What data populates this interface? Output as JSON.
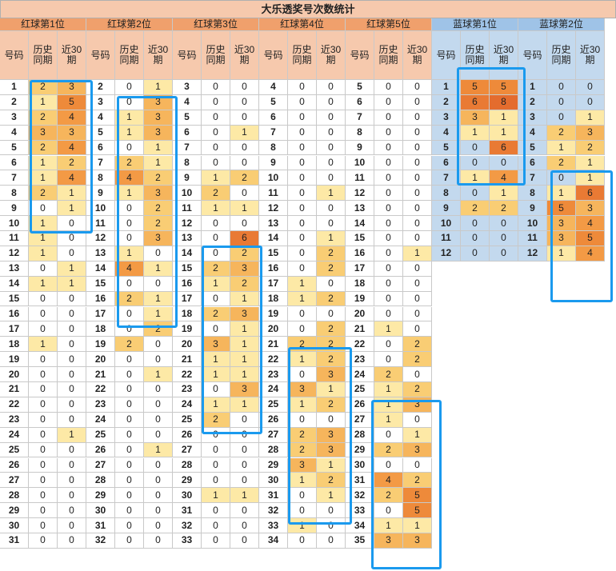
{
  "title": "大乐透奖号次数统计",
  "headers": {
    "num": "号码",
    "hist": "历史\n同期",
    "recent": "近30\n期"
  },
  "colors": {
    "c0": "#ffffff",
    "c1": "#fde9a6",
    "c2": "#f9cd74",
    "c3": "#f6b55c",
    "c4": "#f39a45",
    "c5": "#ee8a3a",
    "c6": "#e97a34",
    "c8": "#e46c2e"
  },
  "red_groups": [
    {
      "label": "红球第1位",
      "rows": [
        [
          "1",
          2,
          3
        ],
        [
          "2",
          1,
          5
        ],
        [
          "3",
          2,
          4
        ],
        [
          "4",
          3,
          3
        ],
        [
          "5",
          2,
          4
        ],
        [
          "6",
          1,
          2
        ],
        [
          "7",
          1,
          4
        ],
        [
          "8",
          2,
          1
        ],
        [
          "9",
          0,
          1
        ],
        [
          "10",
          1,
          0
        ],
        [
          "11",
          1,
          0
        ],
        [
          "12",
          1,
          0
        ],
        [
          "13",
          0,
          1
        ],
        [
          "14",
          1,
          1
        ],
        [
          "15",
          0,
          0
        ],
        [
          "16",
          0,
          0
        ],
        [
          "17",
          0,
          0
        ],
        [
          "18",
          1,
          0
        ],
        [
          "19",
          0,
          0
        ],
        [
          "20",
          0,
          0
        ],
        [
          "21",
          0,
          0
        ],
        [
          "22",
          0,
          0
        ],
        [
          "23",
          0,
          0
        ],
        [
          "24",
          0,
          1
        ],
        [
          "25",
          0,
          0
        ],
        [
          "26",
          0,
          0
        ],
        [
          "27",
          0,
          0
        ],
        [
          "28",
          0,
          0
        ],
        [
          "29",
          0,
          0
        ],
        [
          "30",
          0,
          0
        ],
        [
          "31",
          0,
          0
        ]
      ]
    },
    {
      "label": "红球第2位",
      "rows": [
        [
          "2",
          0,
          1
        ],
        [
          "3",
          0,
          3
        ],
        [
          "4",
          1,
          3
        ],
        [
          "5",
          1,
          3
        ],
        [
          "6",
          0,
          1
        ],
        [
          "7",
          2,
          1
        ],
        [
          "8",
          4,
          2
        ],
        [
          "9",
          1,
          3
        ],
        [
          "10",
          0,
          2
        ],
        [
          "11",
          0,
          2
        ],
        [
          "12",
          0,
          3
        ],
        [
          "13",
          1,
          0
        ],
        [
          "14",
          4,
          1
        ],
        [
          "15",
          0,
          0
        ],
        [
          "16",
          2,
          1
        ],
        [
          "17",
          0,
          1
        ],
        [
          "18",
          0,
          2
        ],
        [
          "19",
          2,
          0
        ],
        [
          "20",
          0,
          0
        ],
        [
          "21",
          0,
          1
        ],
        [
          "22",
          0,
          0
        ],
        [
          "23",
          0,
          0
        ],
        [
          "24",
          0,
          0
        ],
        [
          "25",
          0,
          0
        ],
        [
          "26",
          0,
          1
        ],
        [
          "27",
          0,
          0
        ],
        [
          "28",
          0,
          0
        ],
        [
          "29",
          0,
          0
        ],
        [
          "30",
          0,
          0
        ],
        [
          "31",
          0,
          0
        ],
        [
          "32",
          0,
          0
        ]
      ]
    },
    {
      "label": "红球第3位",
      "rows": [
        [
          "3",
          0,
          0
        ],
        [
          "4",
          0,
          0
        ],
        [
          "5",
          0,
          0
        ],
        [
          "6",
          0,
          1
        ],
        [
          "7",
          0,
          0
        ],
        [
          "8",
          0,
          0
        ],
        [
          "9",
          1,
          2
        ],
        [
          "10",
          2,
          0
        ],
        [
          "11",
          1,
          1
        ],
        [
          "12",
          0,
          0
        ],
        [
          "13",
          0,
          6
        ],
        [
          "14",
          0,
          2
        ],
        [
          "15",
          2,
          3
        ],
        [
          "16",
          1,
          2
        ],
        [
          "17",
          0,
          1
        ],
        [
          "18",
          2,
          3
        ],
        [
          "19",
          0,
          1
        ],
        [
          "20",
          3,
          1
        ],
        [
          "21",
          1,
          1
        ],
        [
          "22",
          1,
          1
        ],
        [
          "23",
          0,
          3
        ],
        [
          "24",
          1,
          1
        ],
        [
          "25",
          2,
          0
        ],
        [
          "26",
          0,
          0
        ],
        [
          "27",
          0,
          0
        ],
        [
          "28",
          0,
          0
        ],
        [
          "29",
          0,
          0
        ],
        [
          "30",
          1,
          1
        ],
        [
          "31",
          0,
          0
        ],
        [
          "32",
          0,
          0
        ],
        [
          "33",
          0,
          0
        ]
      ]
    },
    {
      "label": "红球第4位",
      "rows": [
        [
          "4",
          0,
          0
        ],
        [
          "5",
          0,
          0
        ],
        [
          "6",
          0,
          0
        ],
        [
          "7",
          0,
          0
        ],
        [
          "8",
          0,
          0
        ],
        [
          "9",
          0,
          0
        ],
        [
          "10",
          0,
          0
        ],
        [
          "11",
          0,
          1
        ],
        [
          "12",
          0,
          0
        ],
        [
          "13",
          0,
          0
        ],
        [
          "14",
          0,
          1
        ],
        [
          "15",
          0,
          2
        ],
        [
          "16",
          0,
          2
        ],
        [
          "17",
          1,
          0
        ],
        [
          "18",
          1,
          2
        ],
        [
          "19",
          0,
          0
        ],
        [
          "20",
          0,
          2
        ],
        [
          "21",
          2,
          2
        ],
        [
          "22",
          1,
          2
        ],
        [
          "23",
          0,
          3
        ],
        [
          "24",
          3,
          1
        ],
        [
          "25",
          1,
          2
        ],
        [
          "26",
          0,
          0
        ],
        [
          "27",
          2,
          3
        ],
        [
          "28",
          2,
          3
        ],
        [
          "29",
          3,
          1
        ],
        [
          "30",
          1,
          2
        ],
        [
          "31",
          0,
          1
        ],
        [
          "32",
          0,
          0
        ],
        [
          "33",
          1,
          0
        ],
        [
          "34",
          0,
          0
        ]
      ]
    },
    {
      "label": "红球第5位",
      "rows": [
        [
          "5",
          0,
          0
        ],
        [
          "6",
          0,
          0
        ],
        [
          "7",
          0,
          0
        ],
        [
          "8",
          0,
          0
        ],
        [
          "9",
          0,
          0
        ],
        [
          "10",
          0,
          0
        ],
        [
          "11",
          0,
          0
        ],
        [
          "12",
          0,
          0
        ],
        [
          "13",
          0,
          0
        ],
        [
          "14",
          0,
          0
        ],
        [
          "15",
          0,
          0
        ],
        [
          "16",
          0,
          1
        ],
        [
          "17",
          0,
          0
        ],
        [
          "18",
          0,
          0
        ],
        [
          "19",
          0,
          0
        ],
        [
          "20",
          0,
          0
        ],
        [
          "21",
          1,
          0
        ],
        [
          "22",
          0,
          2
        ],
        [
          "23",
          0,
          2
        ],
        [
          "24",
          2,
          0
        ],
        [
          "25",
          1,
          2
        ],
        [
          "26",
          1,
          3
        ],
        [
          "27",
          1,
          0
        ],
        [
          "28",
          0,
          1
        ],
        [
          "29",
          2,
          3
        ],
        [
          "30",
          0,
          0
        ],
        [
          "31",
          4,
          2
        ],
        [
          "32",
          2,
          5
        ],
        [
          "33",
          0,
          5
        ],
        [
          "34",
          1,
          1
        ],
        [
          "35",
          3,
          3
        ]
      ]
    }
  ],
  "blue_groups": [
    {
      "label": "蓝球第1位",
      "rows": [
        [
          "1",
          5,
          5
        ],
        [
          "2",
          6,
          8
        ],
        [
          "3",
          3,
          1
        ],
        [
          "4",
          1,
          1
        ],
        [
          "5",
          0,
          6
        ],
        [
          "6",
          0,
          0
        ],
        [
          "7",
          1,
          4
        ],
        [
          "8",
          0,
          1
        ],
        [
          "9",
          2,
          2
        ],
        [
          "10",
          0,
          0
        ],
        [
          "11",
          0,
          0
        ],
        [
          "12",
          0,
          0
        ]
      ]
    },
    {
      "label": "蓝球第2位",
      "rows": [
        [
          "1",
          0,
          0
        ],
        [
          "2",
          0,
          0
        ],
        [
          "3",
          0,
          1
        ],
        [
          "4",
          2,
          3
        ],
        [
          "5",
          1,
          2
        ],
        [
          "6",
          2,
          1
        ],
        [
          "7",
          0,
          1
        ],
        [
          "8",
          1,
          6
        ],
        [
          "9",
          5,
          3
        ],
        [
          "10",
          3,
          4
        ],
        [
          "11",
          3,
          5
        ],
        [
          "12",
          1,
          4
        ]
      ]
    }
  ]
}
